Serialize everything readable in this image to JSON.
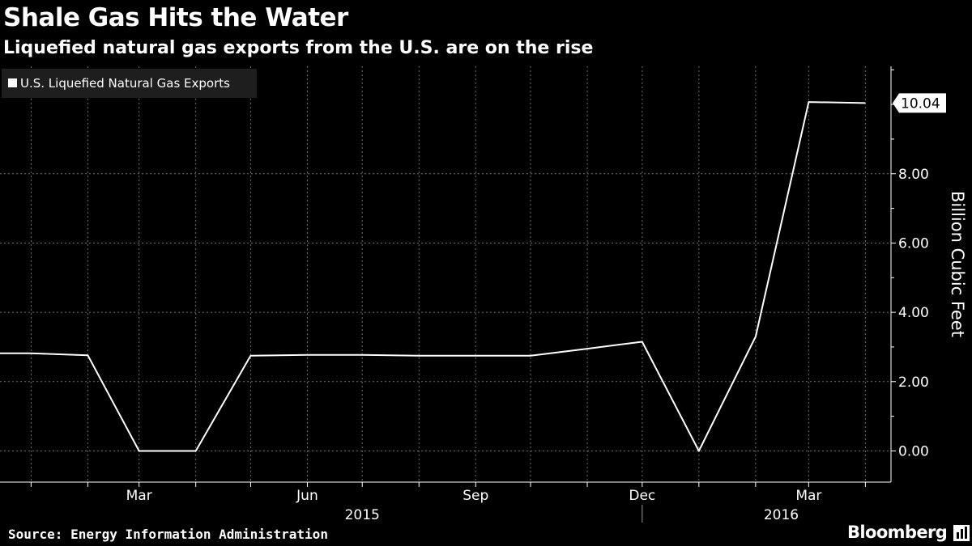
{
  "header": {
    "title": "Shale Gas Hits the Water",
    "subtitle": "Liquefied natural gas exports from the U.S. are on the rise"
  },
  "footer": {
    "source": "Source: Energy Information Administration",
    "logo": "Bloomberg",
    "logo_icon": "bloomberg-terminal-icon"
  },
  "chart_data": {
    "type": "line",
    "title": "Shale Gas Hits the Water",
    "subtitle": "Liquefied natural gas exports from the U.S. are on the rise",
    "ylabel": "Billion Cubic Feet",
    "xlabel": "",
    "ylim": [
      -0.9,
      11.1
    ],
    "xlim": [
      "2014-12-15",
      "2016-04-15"
    ],
    "yticks": [
      0,
      2,
      4,
      6,
      8
    ],
    "ytick_labels": [
      "0.00",
      "2.00",
      "4.00",
      "6.00",
      "8.00"
    ],
    "xticks": [
      {
        "date": "2015-03-01",
        "label": "Mar"
      },
      {
        "date": "2015-06-01",
        "label": "Jun"
      },
      {
        "date": "2015-09-01",
        "label": "Sep"
      },
      {
        "date": "2015-12-01",
        "label": "Dec"
      },
      {
        "date": "2016-03-01",
        "label": "Mar"
      }
    ],
    "year_labels": [
      {
        "label": "2015",
        "center": "2015-07-01"
      },
      {
        "label": "2016",
        "center": "2016-02-15"
      }
    ],
    "year_divider": "2015-12-01",
    "grid": true,
    "legend": {
      "position": "top-left",
      "entries": [
        "U.S. Liquefied Natural Gas Exports"
      ]
    },
    "last_value_label": "10.04",
    "colors": {
      "background": "#000000",
      "line": "#ffffff",
      "grid": "#6e6e6e",
      "axis": "#ffffff"
    },
    "series": [
      {
        "name": "U.S. Liquefied Natural Gas Exports",
        "x": [
          "2015-01-01",
          "2015-02-01",
          "2015-03-01",
          "2015-04-01",
          "2015-05-01",
          "2015-06-01",
          "2015-07-01",
          "2015-08-01",
          "2015-09-01",
          "2015-10-01",
          "2015-11-01",
          "2015-12-01",
          "2016-01-01",
          "2016-02-01",
          "2016-03-01",
          "2016-04-01"
        ],
        "values": [
          2.82,
          2.76,
          0.0,
          0.0,
          2.75,
          2.77,
          2.77,
          2.75,
          2.75,
          2.75,
          2.95,
          3.15,
          0.0,
          3.3,
          10.07,
          10.04
        ]
      }
    ]
  }
}
